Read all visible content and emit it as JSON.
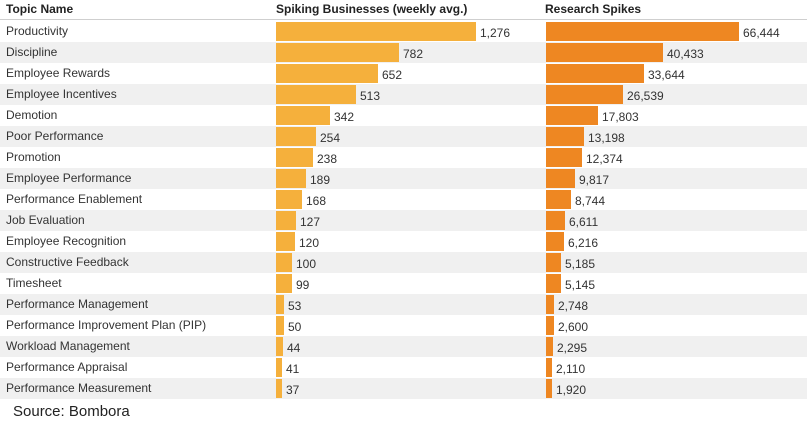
{
  "chart_data": {
    "type": "table",
    "columns": [
      "Topic Name",
      "Spiking Businesses (weekly avg.)",
      "Research Spikes"
    ],
    "rows": [
      {
        "topic": "Productivity",
        "businesses": 1276,
        "research": 66444,
        "businesses_label": "1,276",
        "research_label": "66,444"
      },
      {
        "topic": "Discipline",
        "businesses": 782,
        "research": 40433,
        "businesses_label": "782",
        "research_label": "40,433"
      },
      {
        "topic": "Employee Rewards",
        "businesses": 652,
        "research": 33644,
        "businesses_label": "652",
        "research_label": "33,644"
      },
      {
        "topic": "Employee Incentives",
        "businesses": 513,
        "research": 26539,
        "businesses_label": "513",
        "research_label": "26,539"
      },
      {
        "topic": "Demotion",
        "businesses": 342,
        "research": 17803,
        "businesses_label": "342",
        "research_label": "17,803"
      },
      {
        "topic": "Poor Performance",
        "businesses": 254,
        "research": 13198,
        "businesses_label": "254",
        "research_label": "13,198"
      },
      {
        "topic": "Promotion",
        "businesses": 238,
        "research": 12374,
        "businesses_label": "238",
        "research_label": "12,374"
      },
      {
        "topic": "Employee Performance",
        "businesses": 189,
        "research": 9817,
        "businesses_label": "189",
        "research_label": "9,817"
      },
      {
        "topic": "Performance Enablement",
        "businesses": 168,
        "research": 8744,
        "businesses_label": "168",
        "research_label": "8,744"
      },
      {
        "topic": "Job Evaluation",
        "businesses": 127,
        "research": 6611,
        "businesses_label": "127",
        "research_label": "6,611"
      },
      {
        "topic": "Employee Recognition",
        "businesses": 120,
        "research": 6216,
        "businesses_label": "120",
        "research_label": "6,216"
      },
      {
        "topic": "Constructive Feedback",
        "businesses": 100,
        "research": 5185,
        "businesses_label": "100",
        "research_label": "5,185"
      },
      {
        "topic": "Timesheet",
        "businesses": 99,
        "research": 5145,
        "businesses_label": "99",
        "research_label": "5,145"
      },
      {
        "topic": "Performance Management",
        "businesses": 53,
        "research": 2748,
        "businesses_label": "53",
        "research_label": "2,748"
      },
      {
        "topic": "Performance Improvement Plan (PIP)",
        "businesses": 50,
        "research": 2600,
        "businesses_label": "50",
        "research_label": "2,600"
      },
      {
        "topic": "Workload Management",
        "businesses": 44,
        "research": 2295,
        "businesses_label": "44",
        "research_label": "2,295"
      },
      {
        "topic": "Performance Appraisal",
        "businesses": 41,
        "research": 2110,
        "businesses_label": "41",
        "research_label": "2,110"
      },
      {
        "topic": "Performance Measurement",
        "businesses": 37,
        "research": 1920,
        "businesses_label": "37",
        "research_label": "1,920"
      }
    ],
    "source": "Source: Bombora",
    "colors": {
      "businesses_bar": "#f5b03c",
      "research_bar": "#ee8722"
    }
  }
}
